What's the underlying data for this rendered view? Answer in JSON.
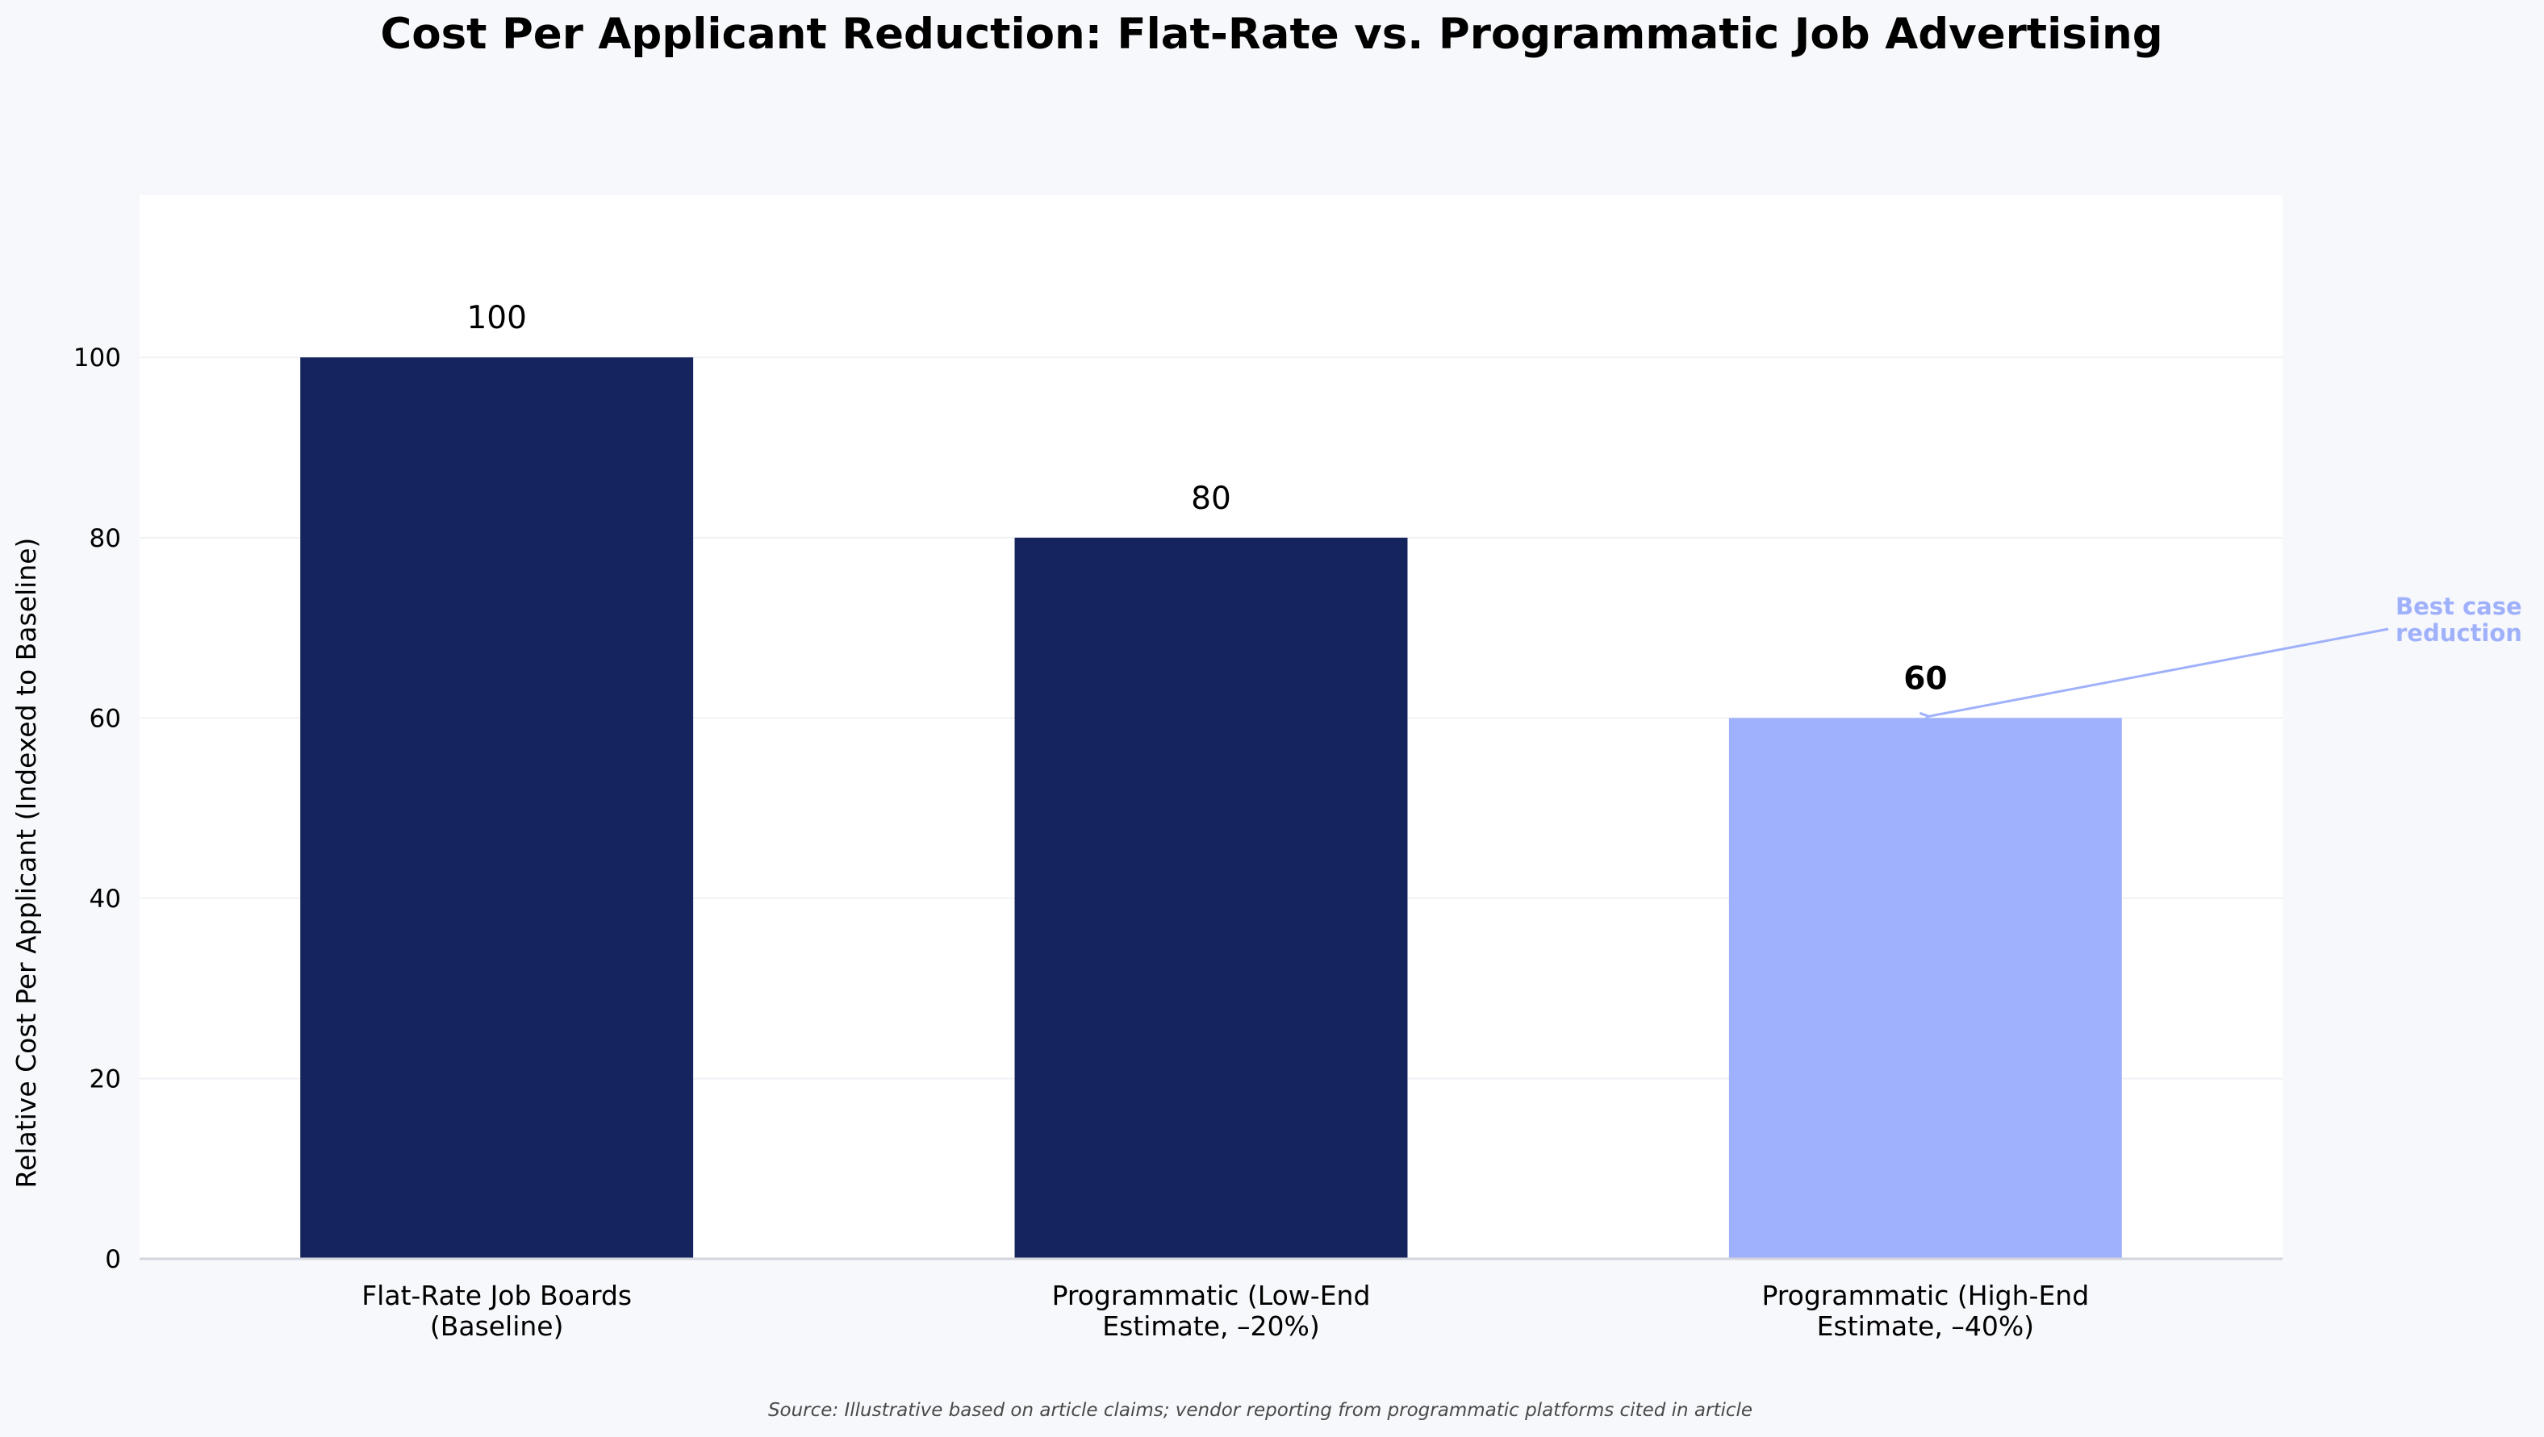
{
  "chart_data": {
    "type": "bar",
    "title": "Cost Per Applicant Reduction: Flat-Rate vs. Programmatic Job Advertising",
    "xlabel": "",
    "ylabel": "Relative Cost Per Applicant (Indexed to Baseline)",
    "ylim": [
      0,
      118
    ],
    "yticks": [
      0,
      20,
      40,
      60,
      80,
      100
    ],
    "grid": "horizontal, faint",
    "categories": [
      [
        "Flat-Rate Job Boards",
        "(Baseline)"
      ],
      [
        "Programmatic (Low-End",
        "Estimate, –20%)"
      ],
      [
        "Programmatic (High-End",
        "Estimate, –40%)"
      ]
    ],
    "values": [
      100,
      80,
      60
    ],
    "value_labels": [
      "100",
      "80",
      "60"
    ],
    "bar_colors": [
      "#15245c",
      "#15245c",
      "#a0b1fb"
    ],
    "highlight_index": 2,
    "annotation": {
      "lines": [
        "Best case",
        "reduction"
      ],
      "target_index": 2,
      "color": "#a0b1fb"
    },
    "source": "Source: Illustrative based on article claims; vendor reporting from programmatic platforms cited in article"
  }
}
